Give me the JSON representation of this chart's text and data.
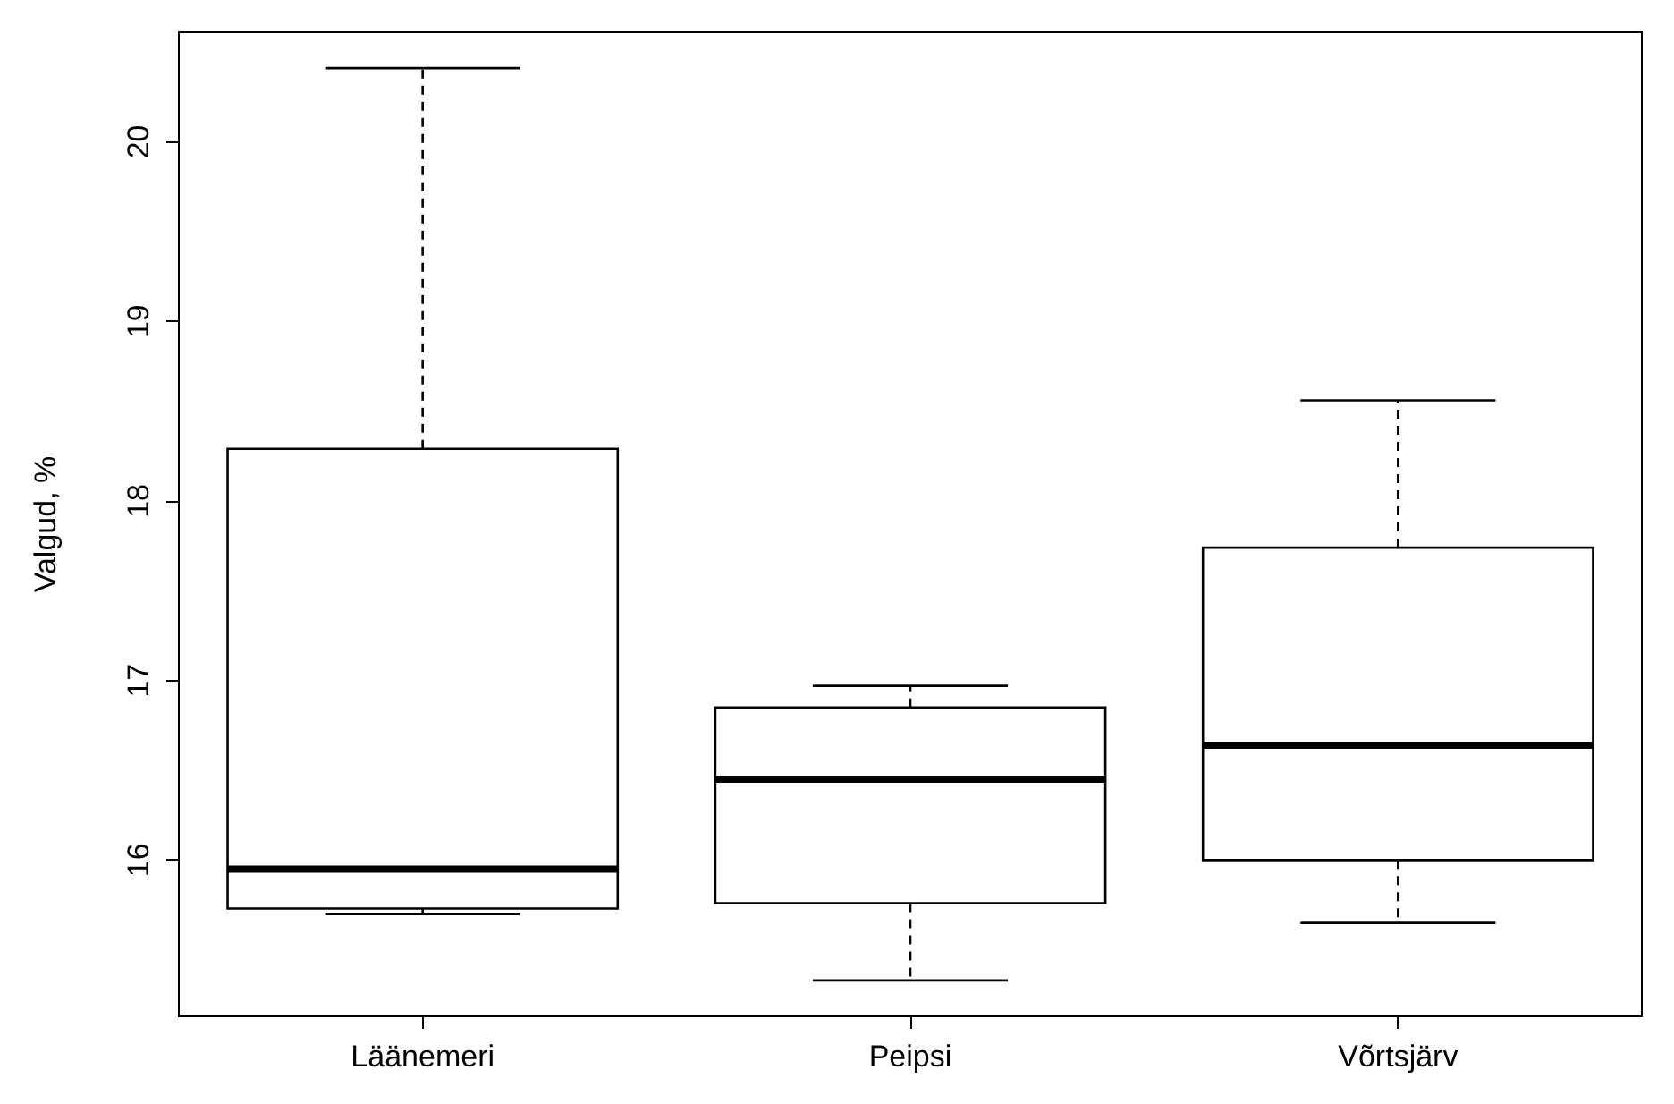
{
  "chart_data": {
    "type": "box",
    "ylabel": "Valgud, %",
    "categories": [
      "Läänemeri",
      "Peipsi",
      "Võrtsjärv"
    ],
    "boxes": [
      {
        "low": 15.7,
        "q1": 15.73,
        "median": 15.95,
        "q3": 18.29,
        "high": 20.41
      },
      {
        "low": 15.33,
        "q1": 15.76,
        "median": 16.45,
        "q3": 16.85,
        "high": 16.97
      },
      {
        "low": 15.65,
        "q1": 16.0,
        "median": 16.64,
        "q3": 17.74,
        "high": 18.56
      }
    ],
    "ylim": [
      15.13,
      20.61
    ],
    "yticks": [
      16,
      17,
      18,
      19,
      20
    ],
    "grid": false
  }
}
